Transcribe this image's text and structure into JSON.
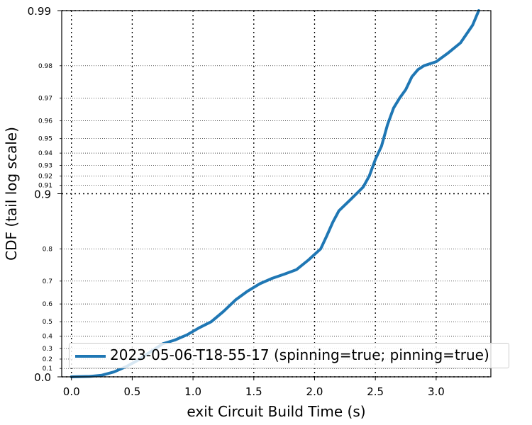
{
  "chart_data": {
    "type": "line",
    "xlabel": "exit Circuit Build Time (s)",
    "ylabel": "CDF (tail log scale)",
    "xlim": [
      -0.08,
      3.45
    ],
    "ylim": [
      0.0,
      0.99
    ],
    "y_scale": "tail-log (1 - p)",
    "x_ticks": [
      {
        "value": 0.0,
        "label": "0.0"
      },
      {
        "value": 0.5,
        "label": "0.5"
      },
      {
        "value": 1.0,
        "label": "1.0"
      },
      {
        "value": 1.5,
        "label": "1.5"
      },
      {
        "value": 2.0,
        "label": "2.0"
      },
      {
        "value": 2.5,
        "label": "2.5"
      },
      {
        "value": 3.0,
        "label": "3.0"
      }
    ],
    "y_major_ticks": [
      {
        "value": 0.0,
        "label": "0.0"
      },
      {
        "value": 0.9,
        "label": "0.9"
      },
      {
        "value": 0.99,
        "label": "0.99"
      }
    ],
    "y_minor_ticks": [
      {
        "value": 0.1,
        "label": "0.1"
      },
      {
        "value": 0.2,
        "label": "0.2"
      },
      {
        "value": 0.3,
        "label": "0.3"
      },
      {
        "value": 0.4,
        "label": "0.4"
      },
      {
        "value": 0.5,
        "label": "0.5"
      },
      {
        "value": 0.6,
        "label": "0.6"
      },
      {
        "value": 0.7,
        "label": "0.7"
      },
      {
        "value": 0.8,
        "label": "0.8"
      },
      {
        "value": 0.91,
        "label": "0.91"
      },
      {
        "value": 0.92,
        "label": "0.92"
      },
      {
        "value": 0.93,
        "label": "0.93"
      },
      {
        "value": 0.94,
        "label": "0.94"
      },
      {
        "value": 0.95,
        "label": "0.95"
      },
      {
        "value": 0.96,
        "label": "0.96"
      },
      {
        "value": 0.97,
        "label": "0.97"
      },
      {
        "value": 0.98,
        "label": "0.98"
      }
    ],
    "grid": true,
    "legend_position": "lower-right",
    "series": [
      {
        "name": "2023-05-06-T18-55-17 (spinning=true; pinning=true)",
        "color": "#1f77b4",
        "x": [
          0.0,
          0.15,
          0.25,
          0.35,
          0.45,
          0.55,
          0.65,
          0.75,
          0.85,
          0.95,
          1.05,
          1.15,
          1.25,
          1.35,
          1.45,
          1.55,
          1.65,
          1.75,
          1.85,
          1.95,
          2.05,
          2.1,
          2.15,
          2.2,
          2.3,
          2.4,
          2.45,
          2.5,
          2.55,
          2.6,
          2.65,
          2.7,
          2.75,
          2.8,
          2.85,
          2.9,
          3.0,
          3.1,
          3.2,
          3.3,
          3.35
        ],
        "y": [
          0.0,
          0.005,
          0.02,
          0.06,
          0.12,
          0.19,
          0.27,
          0.34,
          0.37,
          0.41,
          0.46,
          0.5,
          0.56,
          0.62,
          0.66,
          0.69,
          0.71,
          0.725,
          0.74,
          0.77,
          0.8,
          0.83,
          0.857,
          0.876,
          0.893,
          0.908,
          0.92,
          0.935,
          0.945,
          0.958,
          0.966,
          0.97,
          0.973,
          0.977,
          0.979,
          0.98,
          0.981,
          0.983,
          0.985,
          0.988,
          0.99
        ]
      }
    ]
  }
}
